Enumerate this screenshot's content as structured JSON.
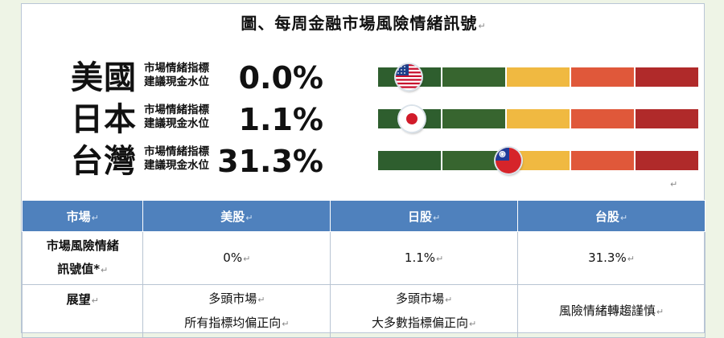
{
  "title": "圖、每周金融市場風險情緒訊號",
  "edit_mark": "↵",
  "indicator_label_line1": "市場情緒指標",
  "indicator_label_line2": "建議現金水位",
  "colors": {
    "dark_green": "#2e5e2e",
    "mid_green": "#37652f",
    "yellow": "#f0b941",
    "orange": "#e0583a",
    "red": "#b02a2a",
    "header_blue": "#4f81bd"
  },
  "signals": [
    {
      "country": "美國",
      "value": "0.0%",
      "flag": "us-flag-icon",
      "marker_position": 0.0
    },
    {
      "country": "日本",
      "value": "1.1%",
      "flag": "japan-flag-icon",
      "marker_position": 0.011
    },
    {
      "country": "台灣",
      "value": "31.3%",
      "flag": "taiwan-flag-icon",
      "marker_position": 0.313
    }
  ],
  "table": {
    "headers": [
      "市場",
      "美股",
      "日股",
      "台股"
    ],
    "rows": [
      {
        "label_line1": "市場風險情緒",
        "label_line2": "訊號值*",
        "cells": [
          [
            "0%"
          ],
          [
            "1.1%"
          ],
          [
            "31.3%"
          ]
        ]
      },
      {
        "label_line1": "展望",
        "label_line2": "",
        "cells": [
          [
            "多頭市場",
            "所有指標均偏正向"
          ],
          [
            "多頭市場",
            "大多數指標偏正向"
          ],
          [
            "風險情緒轉趨謹慎"
          ]
        ]
      }
    ]
  }
}
